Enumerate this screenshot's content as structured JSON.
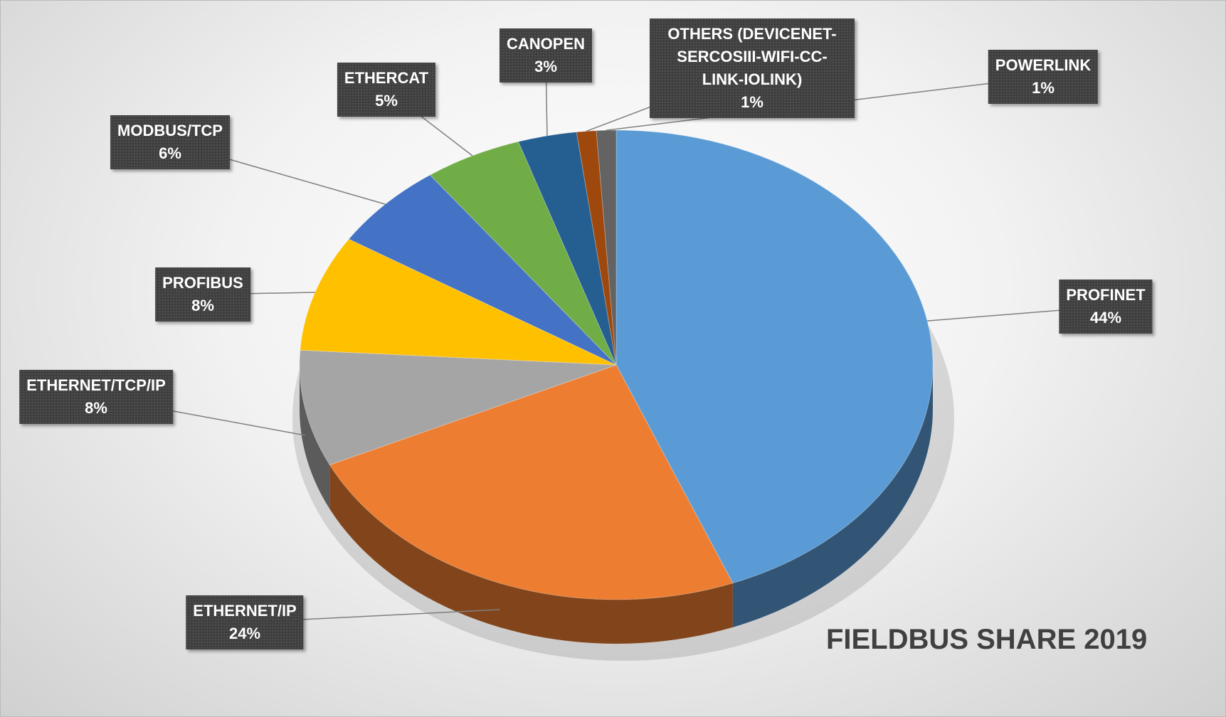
{
  "chart_data": {
    "type": "pie",
    "title": "FIELDBUS SHARE 2019",
    "categories": [
      "PROFINET",
      "ETHERNET/IP",
      "ETHERNET/TCP/IP",
      "PROFIBUS",
      "MODBUS/TCP",
      "ETHERCAT",
      "CANOPEN",
      "OTHERS (DEVICENET-SERCOSIII-WIFI-CC-LINK-IOLINK)",
      "POWERLINK"
    ],
    "values": [
      44,
      24,
      8,
      8,
      6,
      5,
      3,
      1,
      1
    ],
    "value_labels": [
      "44%",
      "24%",
      "8%",
      "8%",
      "6%",
      "5%",
      "3%",
      "1%",
      "1%"
    ],
    "colors": [
      "#5b9bd5",
      "#ed7d31",
      "#a5a5a5",
      "#ffc000",
      "#4472c4",
      "#70ad47",
      "#255e91",
      "#9e480e",
      "#636363"
    ]
  }
}
